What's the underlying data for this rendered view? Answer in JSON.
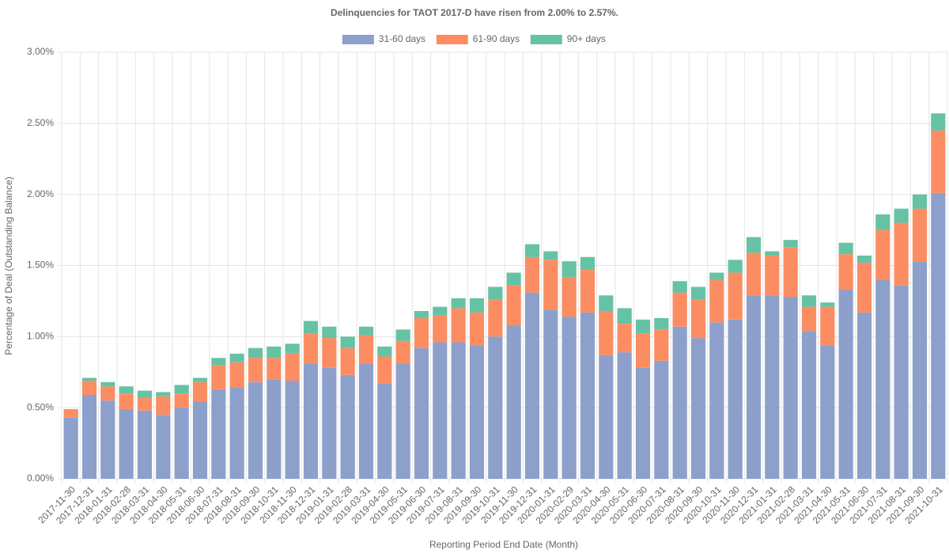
{
  "chart_data": {
    "type": "stacked_bar",
    "title": "Delinquencies for TAOT 2017-D have risen from 2.00% to 2.57%.",
    "x_label": "Reporting Period End Date (Month)",
    "y_label": "Percentage of Deal (Outstanding Balance)",
    "categories": [
      "2017-11-30",
      "2017-12-31",
      "2018-01-31",
      "2018-02-28",
      "2018-03-31",
      "2018-04-30",
      "2018-05-31",
      "2018-06-30",
      "2018-07-31",
      "2018-08-31",
      "2018-09-30",
      "2018-10-31",
      "2018-11-30",
      "2018-12-31",
      "2019-01-31",
      "2019-02-28",
      "2019-03-31",
      "2019-04-30",
      "2019-05-31",
      "2019-06-30",
      "2019-07-31",
      "2019-08-31",
      "2019-09-30",
      "2019-10-31",
      "2019-11-30",
      "2019-12-31",
      "2020-01-31",
      "2020-02-29",
      "2020-03-31",
      "2020-04-30",
      "2020-05-31",
      "2020-06-30",
      "2020-07-31",
      "2020-08-31",
      "2020-09-30",
      "2020-10-31",
      "2020-11-30",
      "2020-12-31",
      "2021-01-31",
      "2021-02-28",
      "2021-03-31",
      "2021-04-30",
      "2021-05-31",
      "2021-06-30",
      "2021-07-31",
      "2021-08-31",
      "2021-09-30",
      "2021-10-31"
    ],
    "series": [
      {
        "name": "31-60 days",
        "color": "#8da0cb",
        "values": [
          0.43,
          0.59,
          0.55,
          0.49,
          0.48,
          0.45,
          0.5,
          0.54,
          0.63,
          0.64,
          0.68,
          0.7,
          0.69,
          0.81,
          0.78,
          0.73,
          0.81,
          0.67,
          0.81,
          0.92,
          0.96,
          0.96,
          0.94,
          1.0,
          1.08,
          1.31,
          1.19,
          1.14,
          1.17,
          0.87,
          0.89,
          0.78,
          0.83,
          1.07,
          0.99,
          1.1,
          1.12,
          1.29,
          1.29,
          1.28,
          1.04,
          0.94,
          1.33,
          1.17,
          1.4,
          1.36,
          1.53,
          2.01
        ]
      },
      {
        "name": "61-90 days",
        "color": "#fc8d62",
        "values": [
          0.06,
          0.1,
          0.1,
          0.11,
          0.09,
          0.13,
          0.1,
          0.14,
          0.17,
          0.18,
          0.17,
          0.15,
          0.19,
          0.21,
          0.21,
          0.19,
          0.2,
          0.19,
          0.16,
          0.21,
          0.19,
          0.24,
          0.23,
          0.26,
          0.28,
          0.25,
          0.35,
          0.28,
          0.3,
          0.31,
          0.2,
          0.24,
          0.22,
          0.24,
          0.27,
          0.3,
          0.33,
          0.3,
          0.28,
          0.35,
          0.17,
          0.27,
          0.25,
          0.35,
          0.35,
          0.44,
          0.37,
          0.44
        ]
      },
      {
        "name": "90+ days",
        "color": "#66c2a5",
        "values": [
          0.0,
          0.02,
          0.03,
          0.05,
          0.05,
          0.03,
          0.06,
          0.03,
          0.05,
          0.06,
          0.07,
          0.08,
          0.07,
          0.09,
          0.08,
          0.08,
          0.06,
          0.07,
          0.08,
          0.05,
          0.06,
          0.07,
          0.1,
          0.09,
          0.09,
          0.09,
          0.06,
          0.11,
          0.09,
          0.11,
          0.11,
          0.1,
          0.08,
          0.08,
          0.09,
          0.05,
          0.09,
          0.11,
          0.03,
          0.05,
          0.08,
          0.03,
          0.08,
          0.05,
          0.11,
          0.1,
          0.1,
          0.12
        ]
      }
    ],
    "ylim": [
      0,
      3
    ],
    "yticks": [
      {
        "value": 0,
        "label": "0.00%"
      },
      {
        "value": 0.5,
        "label": "0.50%"
      },
      {
        "value": 1,
        "label": "1.00%"
      },
      {
        "value": 1.5,
        "label": "1.50%"
      },
      {
        "value": 2,
        "label": "2.00%"
      },
      {
        "value": 2.5,
        "label": "2.50%"
      },
      {
        "value": 3,
        "label": "3.00%"
      }
    ],
    "grid": true,
    "legend": "top"
  }
}
